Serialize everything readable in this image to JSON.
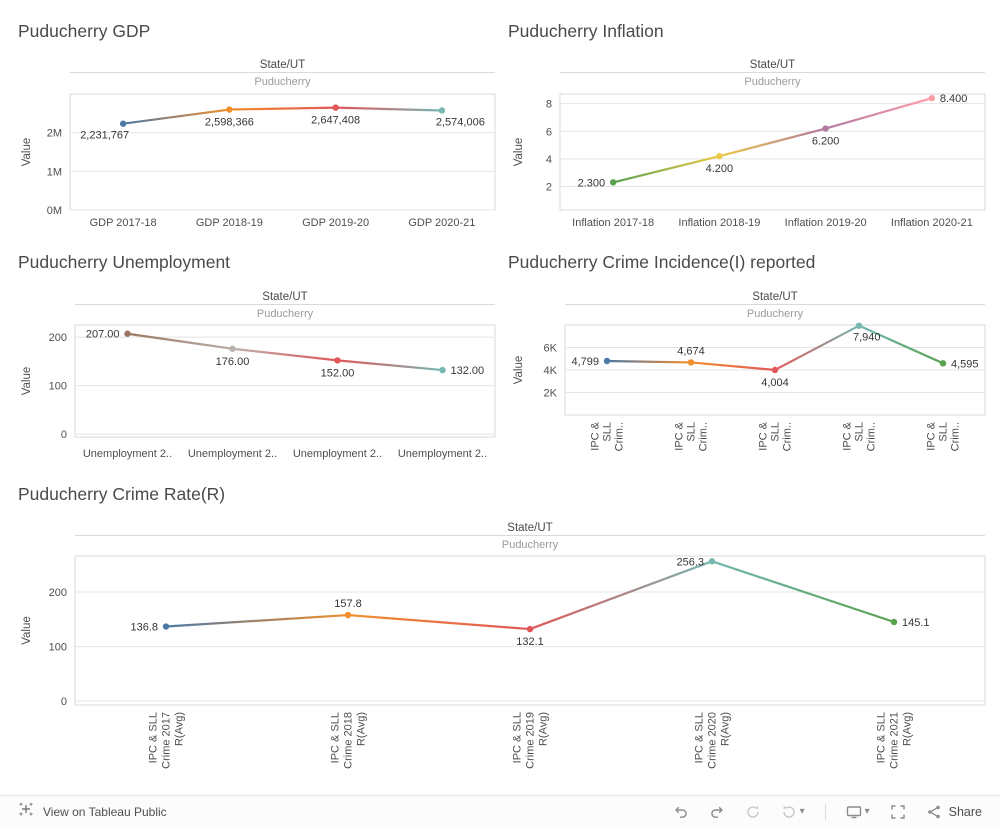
{
  "chart_data": [
    {
      "id": "gdp",
      "type": "line",
      "title": "Puducherry GDP",
      "column_header": "State/UT",
      "column_member": "Puducherry",
      "y_axis_label": "Value",
      "categories": [
        "GDP 2017-18",
        "GDP 2018-19",
        "GDP 2019-20",
        "GDP 2020-21"
      ],
      "values": [
        2231767,
        2598366,
        2647408,
        2574006
      ],
      "point_labels": [
        "2,231,767",
        "2,598,366",
        "2,647,408",
        "2,574,006"
      ],
      "label_placement": [
        "below-left",
        "below",
        "below",
        "below-right"
      ],
      "point_colors": [
        "#4e79a7",
        "#f28e2b",
        "#e15759",
        "#76b7b2"
      ],
      "ylim": [
        0,
        3000000
      ],
      "yticks": [
        {
          "value": 0,
          "label": "0M"
        },
        {
          "value": 1000000,
          "label": "1M"
        },
        {
          "value": 2000000,
          "label": "2M"
        }
      ],
      "grid": true,
      "legend": "none"
    },
    {
      "id": "inflation",
      "type": "line",
      "title": "Puducherry Inflation",
      "column_header": "State/UT",
      "column_member": "Puducherry",
      "y_axis_label": "Value",
      "categories": [
        "Inflation 2017-18",
        "Inflation 2018-19",
        "Inflation 2019-20",
        "Inflation 2020-21"
      ],
      "values": [
        2.3,
        4.2,
        6.2,
        8.4
      ],
      "point_labels": [
        "2.300",
        "4.200",
        "6.200",
        "8.400"
      ],
      "label_placement": [
        "left",
        "below",
        "below",
        "right"
      ],
      "point_colors": [
        "#59a14f",
        "#edc948",
        "#b07aa1",
        "#ff9da7"
      ],
      "ylim": [
        0.3,
        8.7
      ],
      "yticks": [
        {
          "value": 2,
          "label": "2"
        },
        {
          "value": 4,
          "label": "4"
        },
        {
          "value": 6,
          "label": "6"
        },
        {
          "value": 8,
          "label": "8"
        }
      ],
      "grid": true,
      "legend": "none"
    },
    {
      "id": "unemployment",
      "type": "line",
      "title": "Puducherry Unemployment",
      "column_header": "State/UT",
      "column_member": "Puducherry",
      "y_axis_label": "Value",
      "categories": [
        "Unemployment 2..",
        "Unemployment 2..",
        "Unemployment 2..",
        "Unemployment 2.."
      ],
      "values": [
        207,
        176,
        152,
        132
      ],
      "point_labels": [
        "207.00",
        "176.00",
        "152.00",
        "132.00"
      ],
      "label_placement": [
        "left",
        "below",
        "below",
        "right"
      ],
      "point_colors": [
        "#9c755f",
        "#bab0ac",
        "#e15759",
        "#76b7b2"
      ],
      "ylim": [
        -6,
        225
      ],
      "yticks": [
        {
          "value": 0,
          "label": "0"
        },
        {
          "value": 100,
          "label": "100"
        },
        {
          "value": 200,
          "label": "200"
        }
      ],
      "grid": true,
      "legend": "none"
    },
    {
      "id": "crime-incidence",
      "type": "line",
      "title": "Puducherry Crime Incidence(I) reported",
      "column_header": "State/UT",
      "column_member": "Puducherry",
      "y_axis_label": "Value",
      "categories_rotated": [
        [
          "IPC &",
          "SLL",
          "Crim.."
        ],
        [
          "IPC &",
          "SLL",
          "Crim.."
        ],
        [
          "IPC &",
          "SLL",
          "Crim.."
        ],
        [
          "IPC &",
          "SLL",
          "Crim.."
        ],
        [
          "IPC &",
          "SLL",
          "Crim.."
        ]
      ],
      "values": [
        4799,
        4674,
        4004,
        7940,
        4595
      ],
      "point_labels": [
        "4,799",
        "4,674",
        "4,004",
        "7,940",
        "4,595"
      ],
      "label_placement": [
        "left",
        "above",
        "below",
        "below-right",
        "right"
      ],
      "point_colors": [
        "#4e79a7",
        "#f28e2b",
        "#e15759",
        "#76b7b2",
        "#59a14f"
      ],
      "ylim": [
        0,
        8000
      ],
      "yticks": [
        {
          "value": 2000,
          "label": "2K"
        },
        {
          "value": 4000,
          "label": "4K"
        },
        {
          "value": 6000,
          "label": "6K"
        }
      ],
      "grid": true,
      "legend": "none"
    },
    {
      "id": "crime-rate",
      "type": "line",
      "title": "Puducherry Crime Rate(R)",
      "column_header": "State/UT",
      "column_member": "Puducherry",
      "y_axis_label": "Value",
      "categories_rotated": [
        [
          "IPC & SLL",
          "Crime 2017",
          "R(Avg)"
        ],
        [
          "IPC & SLL",
          "Crime 2018",
          "R(Avg)"
        ],
        [
          "IPC & SLL",
          "Crime 2019",
          "R(Avg)"
        ],
        [
          "IPC & SLL",
          "Crime 2020",
          "R(Avg)"
        ],
        [
          "IPC & SLL",
          "Crime 2021",
          "R(Avg)"
        ]
      ],
      "values": [
        136.8,
        157.8,
        132.1,
        256.3,
        145.1
      ],
      "point_labels": [
        "136.8",
        "157.8",
        "132.1",
        "256.3",
        "145.1"
      ],
      "label_placement": [
        "left",
        "above",
        "below",
        "left",
        "right"
      ],
      "point_colors": [
        "#4e79a7",
        "#f28e2b",
        "#e15759",
        "#76b7b2",
        "#59a14f"
      ],
      "ylim": [
        -7,
        266
      ],
      "yticks": [
        {
          "value": 0,
          "label": "0"
        },
        {
          "value": 100,
          "label": "100"
        },
        {
          "value": 200,
          "label": "200"
        }
      ],
      "grid": true,
      "legend": "none"
    }
  ],
  "toolbar": {
    "attribution": "View on Tableau Public",
    "share_label": "Share",
    "icons": [
      "tableau-logo",
      "undo",
      "redo",
      "reset",
      "refresh",
      "caret-down",
      "device-layout",
      "caret-down",
      "fullscreen",
      "share"
    ]
  },
  "colors": {
    "title_text": "#4a4a4a",
    "axis_text": "#4f4f4f",
    "member_text": "#9a9a9a",
    "gridline": "#e4e4e4",
    "plot_border": "#d8d8d8"
  }
}
